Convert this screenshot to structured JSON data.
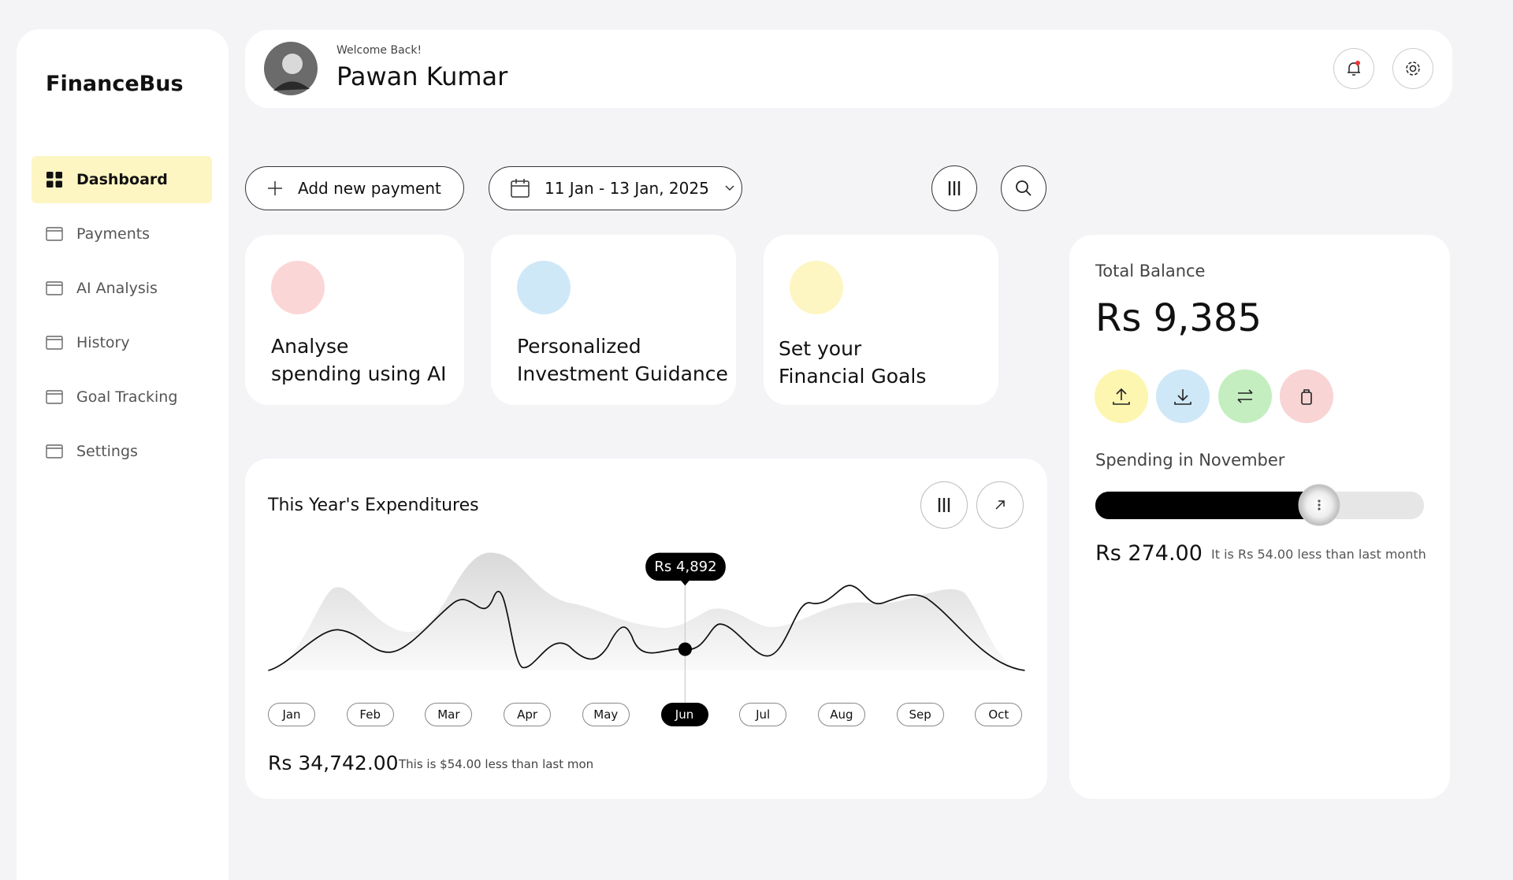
{
  "sidebar": {
    "brand": "FinanceBus",
    "nav": [
      {
        "label": "Dashboard",
        "active": true
      },
      {
        "label": "Payments",
        "active": false
      },
      {
        "label": "AI Analysis",
        "active": false
      },
      {
        "label": "History",
        "active": false
      },
      {
        "label": "Goal Tracking",
        "active": false
      },
      {
        "label": "Settings",
        "active": false
      }
    ]
  },
  "header": {
    "welcome": "Welcome Back!",
    "name": "Pawan Kumar"
  },
  "toolbar": {
    "add_payment": "Add new payment",
    "date_range": "11 Jan - 13 Jan, 2025"
  },
  "cards": [
    {
      "lines": [
        "Analyse",
        "spending using AI"
      ]
    },
    {
      "lines": [
        "Personalized",
        "Investment Guidance"
      ]
    },
    {
      "lines": [
        "Set your",
        "Financial Goals"
      ]
    }
  ],
  "balance": {
    "label": "Total Balance",
    "amount": "Rs 9,385",
    "spending_label": "Spending in November",
    "spending_amount": "Rs 274.00",
    "spending_note": "It is Rs 54.00 less than last month"
  },
  "expenditures": {
    "title": "This Year's Expenditures",
    "tooltip": "Rs 4,892",
    "months": [
      "Jan",
      "Feb",
      "Mar",
      "Apr",
      "May",
      "Jun",
      "Jul",
      "Aug",
      "Sep",
      "Oct"
    ],
    "selected_month": "Jun",
    "total": "Rs 34,742.00",
    "note": "This is $54.00 less than last mon"
  }
}
